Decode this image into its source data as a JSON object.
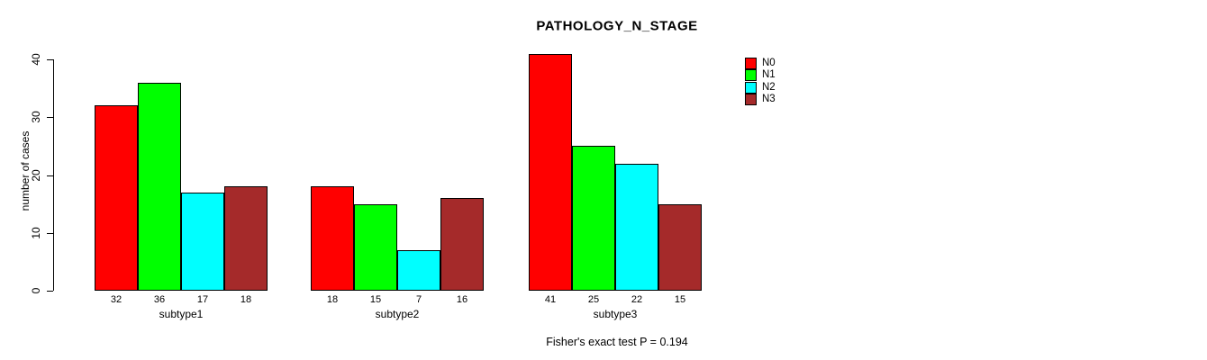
{
  "chart_data": {
    "type": "bar",
    "title": "PATHOLOGY_N_STAGE",
    "xlabel": "",
    "ylabel": "number of cases",
    "categories": [
      "subtype1",
      "subtype2",
      "subtype3"
    ],
    "series": [
      {
        "name": "N0",
        "color": "#FF0000",
        "values": [
          32,
          18,
          41
        ]
      },
      {
        "name": "N1",
        "color": "#00FF00",
        "values": [
          36,
          15,
          25
        ]
      },
      {
        "name": "N2",
        "color": "#00FFFF",
        "values": [
          17,
          7,
          22
        ]
      },
      {
        "name": "N3",
        "color": "#A52A2A",
        "values": [
          18,
          16,
          15
        ]
      }
    ],
    "ylim": [
      0,
      40
    ],
    "yticks": [
      0,
      10,
      20,
      30,
      40
    ],
    "grid": false,
    "bar_value_labels": true,
    "legend_position": "right-outside",
    "annotation": "Fisher's exact test P = 0.194"
  },
  "colors": {
    "background": "#FFFFFF",
    "text": "#000000",
    "bar_border": "#000000"
  }
}
